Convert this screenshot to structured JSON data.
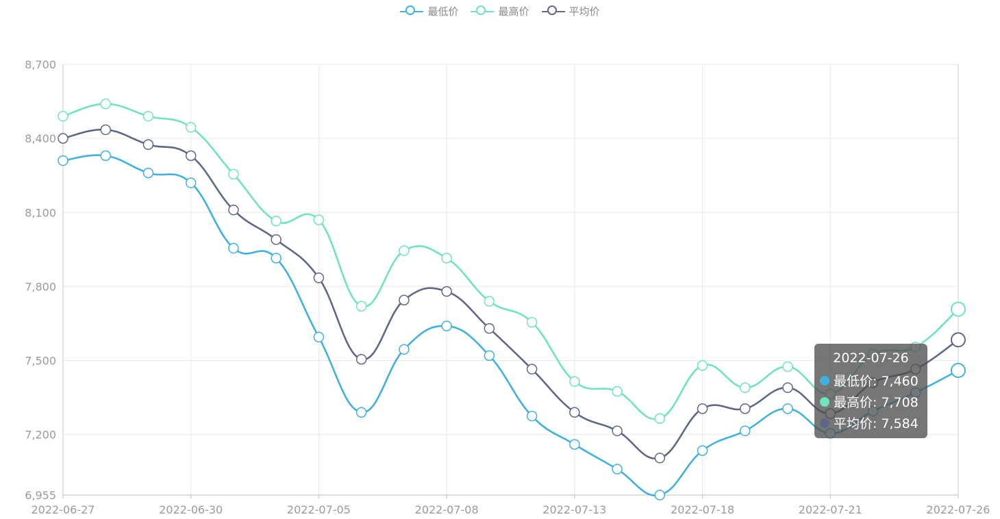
{
  "legend": {
    "items": [
      {
        "label": "最低价",
        "color": "#3fb0e0"
      },
      {
        "label": "最高价",
        "color": "#6ee3bd"
      },
      {
        "label": "平均价",
        "color": "#5e6788"
      }
    ]
  },
  "tooltip": {
    "title": "2022-07-26",
    "rows": [
      {
        "label": "最低价: 7,460",
        "color": "#3fb0e0"
      },
      {
        "label": "最高价: 7,708",
        "color": "#6ee3bd"
      },
      {
        "label": "平均价: 7,584",
        "color": "#5e6788"
      }
    ]
  },
  "chart_data": {
    "type": "line",
    "x": [
      "2022-06-27",
      "2022-06-28",
      "2022-06-29",
      "2022-06-30",
      "2022-07-01",
      "2022-07-04",
      "2022-07-05",
      "2022-07-06",
      "2022-07-07",
      "2022-07-08",
      "2022-07-11",
      "2022-07-12",
      "2022-07-13",
      "2022-07-14",
      "2022-07-15",
      "2022-07-18",
      "2022-07-19",
      "2022-07-20",
      "2022-07-21",
      "2022-07-22",
      "2022-07-25",
      "2022-07-26"
    ],
    "x_tick_labels": [
      "2022-06-27",
      "2022-06-30",
      "2022-07-05",
      "2022-07-08",
      "2022-07-13",
      "2022-07-18",
      "2022-07-21",
      "2022-07-26"
    ],
    "x_tick_indices": [
      0,
      3,
      6,
      9,
      12,
      15,
      18,
      21
    ],
    "y_ticks": [
      6955,
      7200,
      7500,
      7800,
      8100,
      8400,
      8700
    ],
    "y_tick_labels": [
      "6,955",
      "7,200",
      "7,500",
      "7,800",
      "8,100",
      "8,400",
      "8,700"
    ],
    "ylim": [
      6955,
      8700
    ],
    "grid": true,
    "legend_position": "top-center",
    "series": [
      {
        "name": "最低价",
        "color": "#3fb0e0",
        "values": [
          8310,
          8330,
          8260,
          8220,
          7955,
          7915,
          7595,
          7290,
          7545,
          7640,
          7520,
          7275,
          7160,
          7060,
          6955,
          7135,
          7215,
          7305,
          7205,
          7295,
          7370,
          7460
        ]
      },
      {
        "name": "最高价",
        "color": "#6ee3bd",
        "values": [
          8490,
          8540,
          8490,
          8445,
          8255,
          8065,
          8070,
          7720,
          7945,
          7915,
          7740,
          7655,
          7415,
          7375,
          7265,
          7480,
          7390,
          7475,
          7365,
          7525,
          7555,
          7708
        ]
      },
      {
        "name": "平均价",
        "color": "#5e6788",
        "values": [
          8400,
          8435,
          8375,
          8330,
          8110,
          7990,
          7835,
          7505,
          7745,
          7780,
          7630,
          7465,
          7290,
          7215,
          7105,
          7305,
          7305,
          7390,
          7285,
          7410,
          7465,
          7584
        ]
      }
    ],
    "highlight_index": 21
  }
}
